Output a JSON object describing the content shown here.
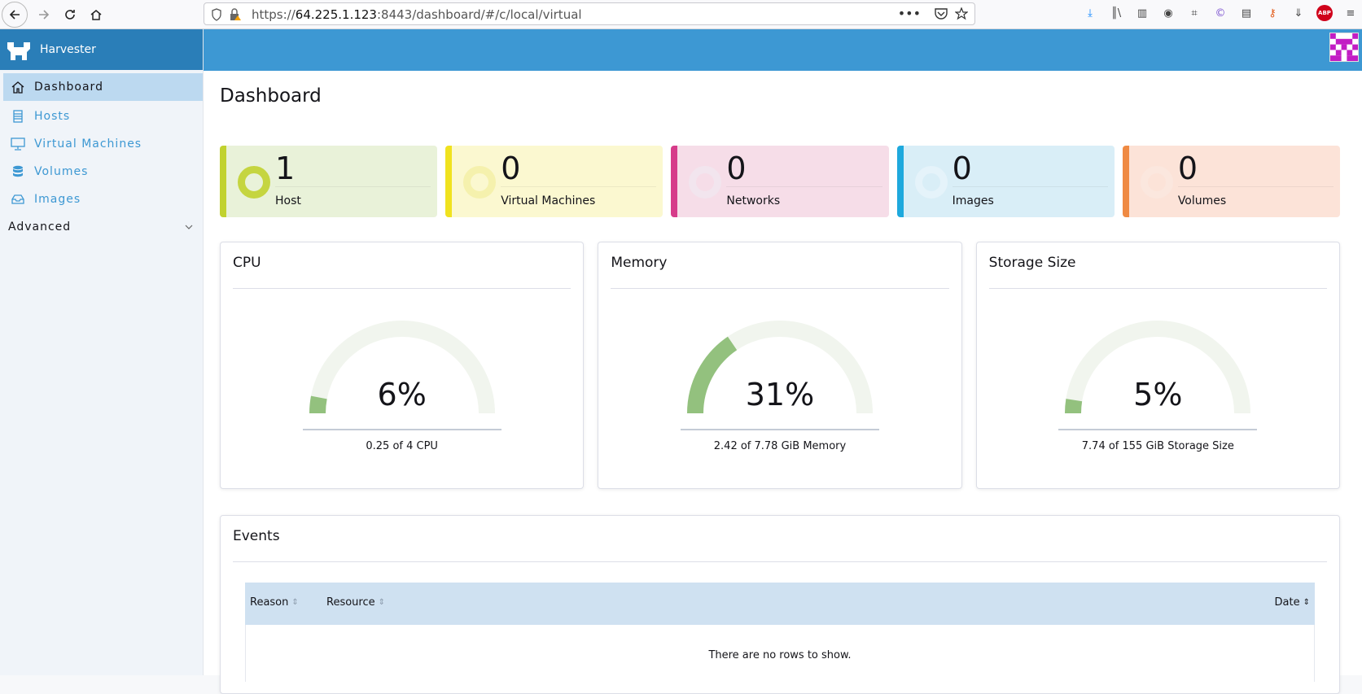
{
  "browser": {
    "url_host": "https://64.225.1.123",
    "url_rest": ":8443/dashboard/#/c/local/virtual",
    "url_host_bold": "64.225.1.123"
  },
  "sidebar": {
    "brand": "Harvester",
    "items": [
      {
        "label": "Dashboard",
        "icon": "home-icon"
      },
      {
        "label": "Hosts",
        "icon": "server-icon"
      },
      {
        "label": "Virtual Machines",
        "icon": "monitor-icon"
      },
      {
        "label": "Volumes",
        "icon": "database-icon"
      },
      {
        "label": "Images",
        "icon": "image-tray-icon"
      }
    ],
    "advanced": "Advanced"
  },
  "main": {
    "title": "Dashboard",
    "counts": [
      {
        "value": "1",
        "label": "Host",
        "color": "#c1d22f",
        "bg": "#e9f2d9",
        "ring": "#c1d22f"
      },
      {
        "value": "0",
        "label": "Virtual Machines",
        "color": "#f0e21f",
        "bg": "#fbf8d0",
        "ring": "#f4efa8"
      },
      {
        "value": "0",
        "label": "Networks",
        "color": "#d63c8a",
        "bg": "#f6dde8",
        "ring": "#f2e6ee"
      },
      {
        "value": "0",
        "label": "Images",
        "color": "#1ea9dd",
        "bg": "#d9eef7",
        "ring": "#e6f3fa"
      },
      {
        "value": "0",
        "label": "Volumes",
        "color": "#ef8a43",
        "bg": "#fce3d8",
        "ring": "#fbe7df"
      }
    ],
    "gauges": [
      {
        "title": "CPU",
        "pct_text": "6%",
        "pct": 6,
        "sub": "0.25 of 4 CPU"
      },
      {
        "title": "Memory",
        "pct_text": "31%",
        "pct": 31,
        "sub": "2.42 of 7.78 GiB Memory"
      },
      {
        "title": "Storage Size",
        "pct_text": "5%",
        "pct": 5,
        "sub": "7.74 of 155 GiB Storage Size"
      }
    ],
    "events": {
      "title": "Events",
      "columns": [
        "Reason",
        "Resource",
        "Date"
      ],
      "empty": "There are no rows to show."
    }
  },
  "colors": {
    "brand": "#2a7eb8",
    "header": "#3d98d3",
    "gauge_fill": "#93c17e",
    "gauge_track": "#f1f5ee"
  }
}
